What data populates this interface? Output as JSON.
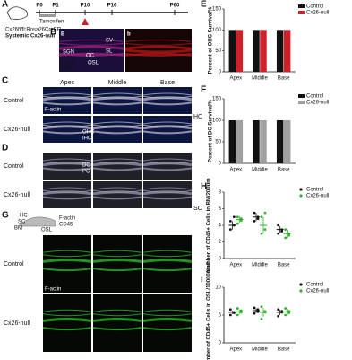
{
  "letters": [
    "A",
    "B",
    "C",
    "D",
    "E",
    "F",
    "G",
    "H",
    "I"
  ],
  "timeline": {
    "ticks": [
      "P0",
      "P1",
      "P10",
      "P16",
      "P60"
    ],
    "treatment": "Tamoxifen",
    "genotype": "Cx26fl/fl;Rosa26CreER",
    "model": "Systemic Cx26-null"
  },
  "panel_b": {
    "labels": [
      "B",
      "b"
    ],
    "tissue": [
      "SV",
      "SL",
      "SGN",
      "OC",
      "OSL"
    ],
    "stains": [
      "CD45",
      "DAPI"
    ]
  },
  "panel_c": {
    "columns": [
      "Apex",
      "Middle",
      "Base"
    ],
    "rows": [
      "Control",
      "Cx26-null"
    ],
    "stain": "F-actin",
    "cells": [
      "OHC",
      "IHC"
    ]
  },
  "panel_d": {
    "rows": [
      "Control",
      "Cx26-null"
    ],
    "cells": [
      "DC",
      "PC"
    ]
  },
  "side_labels": [
    "HC",
    "SC"
  ],
  "panel_g": {
    "rows": [
      "Control",
      "Cx26-null"
    ],
    "diagram": [
      "HC",
      "SC",
      "BM",
      "OSL"
    ],
    "stains": [
      "F-actin",
      "CD45"
    ]
  },
  "chart_data": [
    {
      "type": "bar",
      "y_label": "Percent of OHC Survival%",
      "categories": [
        "Apex",
        "Middle",
        "Base"
      ],
      "series": [
        {
          "name": "Control",
          "color": "#111111",
          "values": [
            100,
            100,
            100
          ]
        },
        {
          "name": "Cx26-null",
          "color": "#d0202a",
          "values": [
            100,
            100,
            100
          ]
        }
      ],
      "ylim": [
        0,
        150
      ],
      "yticks": [
        0,
        50,
        100,
        150
      ]
    },
    {
      "type": "bar",
      "y_label": "Percent of DC Survival%",
      "categories": [
        "Apex",
        "Middle",
        "Base"
      ],
      "series": [
        {
          "name": "Control",
          "color": "#111111",
          "values": [
            100,
            100,
            100
          ]
        },
        {
          "name": "Cx26-null",
          "color": "#a0a0a0",
          "values": [
            100,
            100,
            100
          ]
        }
      ],
      "ylim": [
        0,
        150
      ],
      "yticks": [
        0,
        50,
        100,
        150
      ]
    },
    {
      "type": "dot",
      "y_label": "Number of CD45+ Cells in BM/200um",
      "categories": [
        "Apex",
        "Middle",
        "Base"
      ],
      "series": [
        {
          "name": "Control",
          "color": "#111111",
          "values": [
            4,
            5,
            3.5
          ],
          "errors": [
            0.5,
            0.5,
            0.4
          ],
          "points": [
            [
              3.5,
              4,
              4.5,
              5
            ],
            [
              4.5,
              5,
              5.5,
              4.8
            ],
            [
              3,
              3.5,
              4,
              3.3
            ]
          ]
        },
        {
          "name": "Cx26-null",
          "color": "#2bb32b",
          "values": [
            4.7,
            4,
            3
          ],
          "errors": [
            0.4,
            1,
            0.5
          ],
          "points": [
            [
              4.2,
              4.8,
              5,
              4.6
            ],
            [
              3,
              3.5,
              5,
              5.5
            ],
            [
              2.5,
              3,
              3.5,
              2.8
            ]
          ]
        }
      ],
      "ylim": [
        0,
        8
      ],
      "yticks": [
        0,
        2,
        4,
        6,
        8
      ]
    },
    {
      "type": "dot",
      "y_label": "Number of CD45+ Cells in OSL/10000um2",
      "categories": [
        "Apex",
        "Middle",
        "Base"
      ],
      "series": [
        {
          "name": "Control",
          "color": "#111111",
          "values": [
            5.5,
            5.8,
            5.5
          ],
          "errors": [
            0.3,
            0.4,
            0.5
          ],
          "points": [
            [
              5,
              5.5,
              6,
              5.4
            ],
            [
              5.3,
              6,
              6.3,
              5.6
            ],
            [
              4.8,
              5.5,
              6,
              5.7
            ]
          ]
        },
        {
          "name": "Cx26-null",
          "color": "#2bb32b",
          "values": [
            5.6,
            5.5,
            5.6
          ],
          "errors": [
            0.4,
            0.8,
            0.5
          ],
          "points": [
            [
              5,
              5.8,
              6.2,
              5.5
            ],
            [
              4.3,
              5.5,
              6.5,
              5.7
            ],
            [
              5,
              5.7,
              6.2,
              5.4
            ]
          ]
        }
      ],
      "ylim": [
        0,
        10
      ],
      "yticks": [
        0,
        5,
        10
      ]
    }
  ]
}
